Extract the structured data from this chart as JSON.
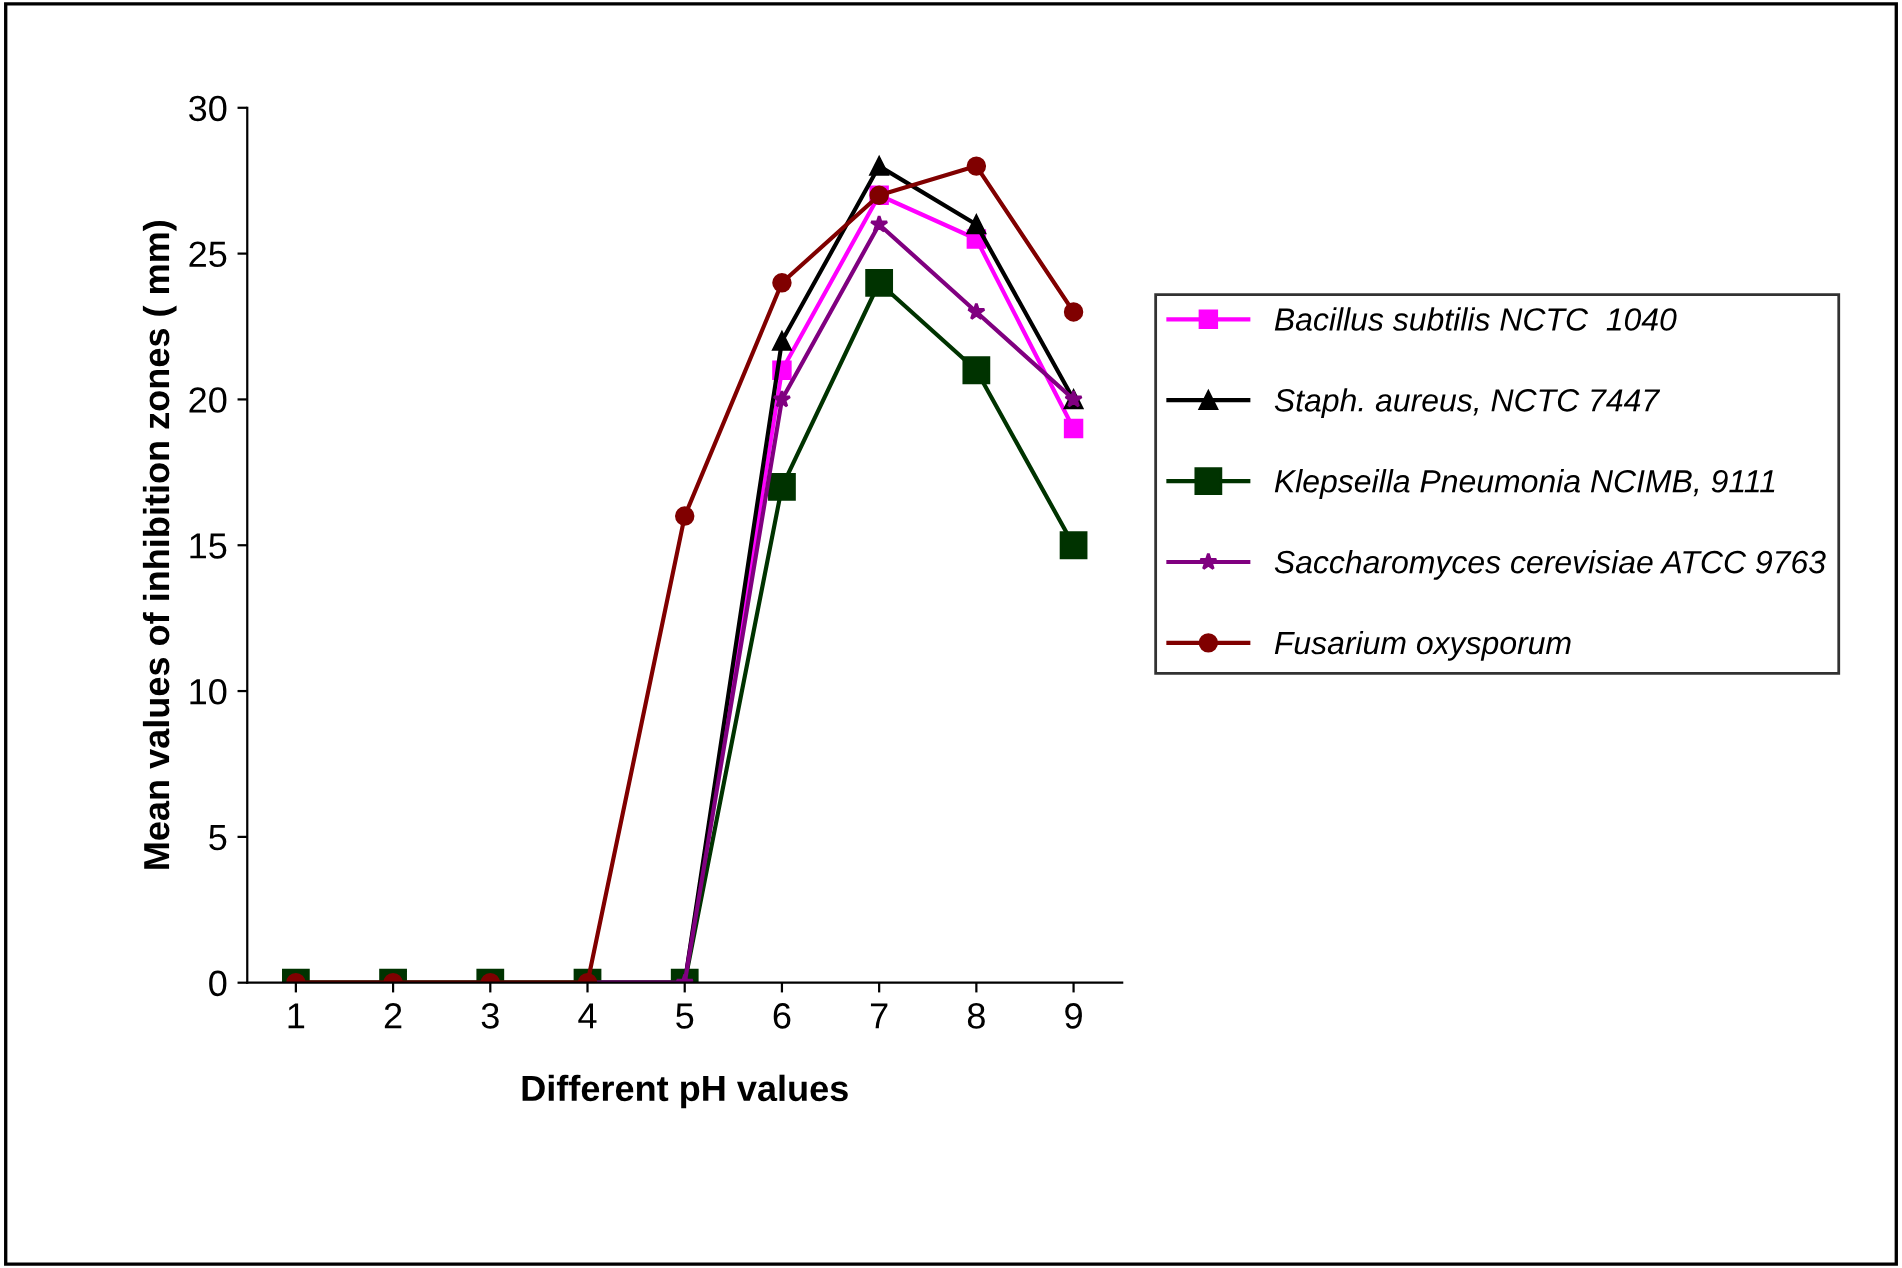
{
  "chart_data": {
    "type": "line",
    "xlabel": "Different pH values",
    "ylabel": "Mean values of inhibition zones ( mm)",
    "categories": [
      "1",
      "2",
      "3",
      "4",
      "5",
      "6",
      "7",
      "8",
      "9"
    ],
    "ylim": [
      0,
      30
    ],
    "yticks": [
      0,
      5,
      10,
      15,
      20,
      25,
      30
    ],
    "grid": false,
    "legend": "right",
    "series": [
      {
        "name": "Bacillus subtilis NCTC  1040",
        "color": "#ff00ff",
        "marker": "square",
        "values": [
          null,
          null,
          null,
          0,
          0,
          21,
          27,
          25.5,
          19
        ]
      },
      {
        "name": "Staph. aureus, NCTC 7447",
        "color": "#000000",
        "marker": "triangle",
        "values": [
          0,
          0,
          0,
          0,
          0,
          22,
          28,
          26,
          20
        ]
      },
      {
        "name": "Klepseilla Pneumonia NCIMB, 9111",
        "color": "#003300",
        "marker": "square",
        "values": [
          0,
          0,
          0,
          0,
          0,
          17,
          24,
          21,
          15
        ]
      },
      {
        "name": "Saccharomyces cerevisiae ATCC 9763",
        "color": "#800080",
        "marker": "star",
        "values": [
          null,
          null,
          null,
          0,
          0,
          20,
          26,
          23,
          20
        ]
      },
      {
        "name": "Fusarium oxysporum",
        "color": "#800000",
        "marker": "circle",
        "values": [
          0,
          0,
          0,
          0,
          16,
          24,
          27,
          28,
          23
        ]
      }
    ]
  }
}
